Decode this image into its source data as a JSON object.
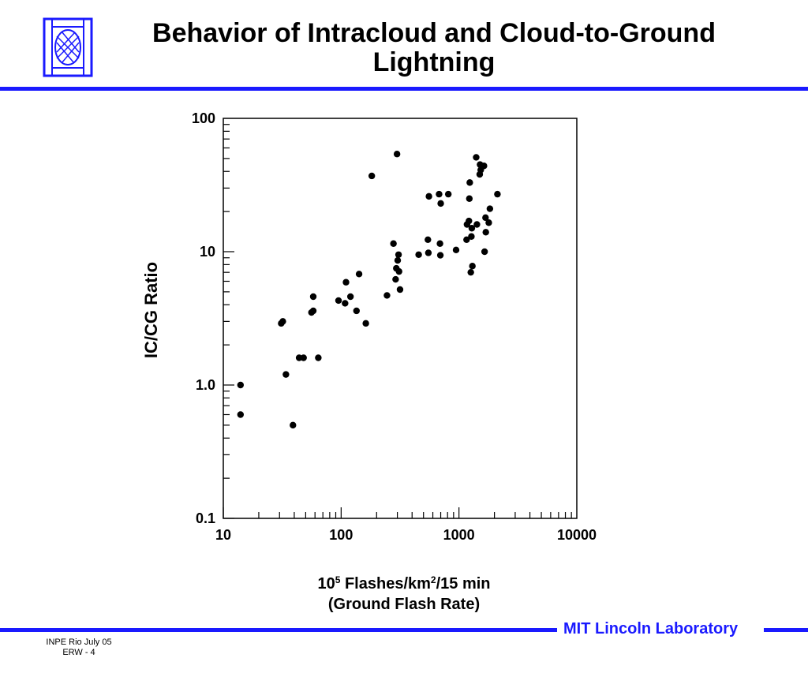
{
  "header": {
    "title_line1": "Behavior of Intracloud and Cloud-to-Ground",
    "title_line2": "Lightning"
  },
  "footer": {
    "lab_name": "MIT Lincoln Laboratory",
    "note_line1": "INPE Rio  July 05",
    "note_line2": "ERW - 4"
  },
  "colors": {
    "accent": "#1a1aff",
    "marker": "#000000"
  },
  "icons": {
    "logo": "mit-ll-logo-icon"
  },
  "chart_data": {
    "type": "scatter",
    "title": "",
    "xlabel_base": "10",
    "xlabel_exp": "5",
    "xlabel_mid": " Flashes/km",
    "xlabel_exp2": "2",
    "xlabel_end": "/15 min",
    "xlabel_sub": "(Ground Flash Rate)",
    "ylabel": "IC/CG Ratio",
    "xscale": "log",
    "yscale": "log",
    "xlim": [
      10,
      10000
    ],
    "ylim": [
      0.1,
      100
    ],
    "xticks": [
      10,
      100,
      1000,
      10000
    ],
    "xtick_labels": [
      "10",
      "100",
      "1000",
      "10000"
    ],
    "yticks": [
      0.1,
      1,
      10,
      100
    ],
    "ytick_labels": [
      "0.1",
      "1.0",
      "10",
      "100"
    ],
    "grid": false,
    "points": [
      [
        14,
        1.0
      ],
      [
        14,
        0.6
      ],
      [
        31,
        2.9
      ],
      [
        32,
        3.0
      ],
      [
        34,
        1.2
      ],
      [
        39,
        0.5
      ],
      [
        44,
        1.6
      ],
      [
        48,
        1.6
      ],
      [
        56,
        3.5
      ],
      [
        58,
        3.6
      ],
      [
        58,
        4.6
      ],
      [
        64,
        1.6
      ],
      [
        95,
        4.3
      ],
      [
        108,
        4.1
      ],
      [
        110,
        5.9
      ],
      [
        120,
        4.6
      ],
      [
        135,
        3.6
      ],
      [
        142,
        6.8
      ],
      [
        162,
        2.9
      ],
      [
        182,
        37
      ],
      [
        245,
        4.7
      ],
      [
        278,
        11.5
      ],
      [
        290,
        6.2
      ],
      [
        294,
        7.5
      ],
      [
        302,
        8.6
      ],
      [
        307,
        9.5
      ],
      [
        310,
        7.1
      ],
      [
        316,
        5.2
      ],
      [
        298,
        54
      ],
      [
        455,
        9.5
      ],
      [
        545,
        12.3
      ],
      [
        550,
        9.8
      ],
      [
        556,
        26
      ],
      [
        678,
        27
      ],
      [
        690,
        11.5
      ],
      [
        695,
        9.4
      ],
      [
        700,
        23
      ],
      [
        812,
        27
      ],
      [
        945,
        10.3
      ],
      [
        1160,
        12.3
      ],
      [
        1170,
        16
      ],
      [
        1215,
        17
      ],
      [
        1225,
        25
      ],
      [
        1235,
        33
      ],
      [
        1260,
        7
      ],
      [
        1275,
        13
      ],
      [
        1285,
        15
      ],
      [
        1300,
        7.8
      ],
      [
        1400,
        51
      ],
      [
        1420,
        16
      ],
      [
        1500,
        38
      ],
      [
        1510,
        45
      ],
      [
        1530,
        41
      ],
      [
        1630,
        44
      ],
      [
        1650,
        10
      ],
      [
        1680,
        18
      ],
      [
        1690,
        14
      ],
      [
        1790,
        16.5
      ],
      [
        1830,
        21
      ],
      [
        2120,
        27
      ]
    ]
  }
}
